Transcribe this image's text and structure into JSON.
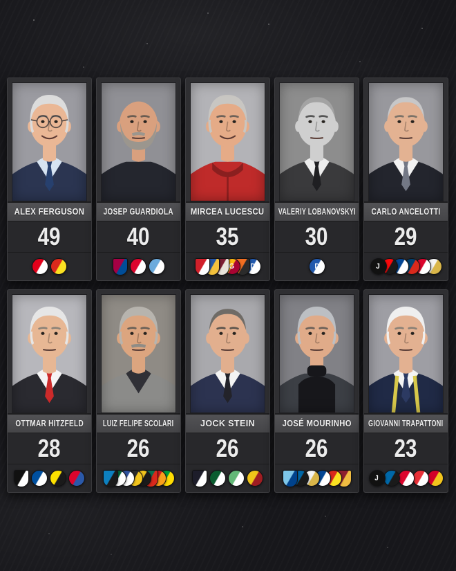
{
  "theme": {
    "chalkboard_bg": "#17171b",
    "card_frame": "#2f2f32",
    "card_border": "#3e3e41",
    "name_bar_bg": "#4a4a4d",
    "panel_bg": "#28282b",
    "text_color": "#ededed"
  },
  "cards": [
    {
      "name": "ALEX FERGUSON",
      "count": 49,
      "portrait": {
        "bg": "#9b9ba1",
        "skin": "#eab795",
        "hair": "full",
        "hairColor": "#dcdcdc",
        "suit": "#2b3551",
        "shirt": "#d7e4f2",
        "tie": "#27406e",
        "glasses": true,
        "smile": true,
        "brow": "#8a8078"
      },
      "badges": [
        {
          "club": "Aberdeen",
          "shape": "circle",
          "c1": "#e2001a",
          "c2": "#ffffff"
        },
        {
          "club": "Manchester United",
          "shape": "circle",
          "c1": "#da291c",
          "c2": "#fbe122"
        }
      ]
    },
    {
      "name": "JOSEP GUARDIOLA",
      "count": 40,
      "portrait": {
        "bg": "#909095",
        "skin": "#d9a07e",
        "hair": "none",
        "hairColor": "#9a9089",
        "beard": "#9b968e",
        "suit": "#24262e",
        "brow": "#6b5d52"
      },
      "badges": [
        {
          "club": "Barcelona",
          "shape": "shield",
          "c1": "#a50044",
          "c2": "#004d98"
        },
        {
          "club": "Bayern Munich",
          "shape": "circle",
          "c1": "#dc052d",
          "c2": "#ffffff"
        },
        {
          "club": "Manchester City",
          "shape": "circle",
          "c1": "#6cabdd",
          "c2": "#ffffff"
        }
      ]
    },
    {
      "name": "MIRCEA LUCESCU",
      "count": 35,
      "portrait": {
        "bg": "#b3b3b7",
        "skin": "#e5ab87",
        "hair": "full",
        "hairColor": "#c8c6c2",
        "suit": "#bf2b2a",
        "zip": true,
        "zipCollar": "#8a1f1f",
        "smile": true,
        "brow": "#6e6259"
      },
      "badges": [
        {
          "club": "Dinamo Bucuresti",
          "shape": "shield",
          "c1": "#d1202a",
          "c2": "#ffffff"
        },
        {
          "club": "Brescia",
          "shape": "shield",
          "c1": "#2456a4",
          "c2": "#f3c13d"
        },
        {
          "club": "Rapid Bucuresti",
          "shape": "shield",
          "c1": "#7c1f33",
          "c2": "#e8e4da"
        },
        {
          "club": "Galatasaray",
          "shape": "circle",
          "c1": "#fdb912",
          "c2": "#a90432",
          "glyph": "G",
          "glyphColor": "#ffffff"
        },
        {
          "club": "Shakhtar Donetsk",
          "shape": "shield",
          "c1": "#f36f21",
          "c2": "#2b2b2b"
        },
        {
          "club": "Dynamo Kyiv",
          "shape": "circle",
          "c1": "#2259ad",
          "c2": "#ffffff",
          "glyph": "D",
          "glyphColor": "#ffffff"
        }
      ]
    },
    {
      "name": "VALERIY LOBANOVSKYI",
      "count": 30,
      "portrait": {
        "bg": "#8d8d8d",
        "skin": "#cfcfcf",
        "hair": "receding",
        "hairColor": "#a3a3a3",
        "suit": "#3a3a3c",
        "shirt": "#ededed",
        "tie": "#1f1f22",
        "brow": "#555555"
      },
      "badges": [
        {
          "club": "Dynamo Kyiv",
          "shape": "circle",
          "c1": "#2259ad",
          "c2": "#ffffff",
          "glyph": "D",
          "glyphColor": "#ffffff"
        }
      ]
    },
    {
      "name": "CARLO ANCELOTTI",
      "count": 29,
      "portrait": {
        "bg": "#98989d",
        "skin": "#e3b292",
        "hair": "receding",
        "hairColor": "#c7c7c8",
        "suit": "#23252d",
        "shirt": "#f2f2f2",
        "tie": "#737885",
        "brow": "#7b7268"
      },
      "badges": [
        {
          "club": "Juventus",
          "shape": "circle",
          "c1": "#111111",
          "c2": "#111111",
          "glyph": "J",
          "glyphColor": "#ffffff"
        },
        {
          "club": "AC Milan",
          "shape": "circle",
          "c1": "#fb090b",
          "c2": "#1a1a1a"
        },
        {
          "club": "Chelsea",
          "shape": "circle",
          "c1": "#034694",
          "c2": "#ffffff"
        },
        {
          "club": "Paris Saint-Germain",
          "shape": "circle",
          "c1": "#004170",
          "c2": "#da291c"
        },
        {
          "club": "Bayern Munich",
          "shape": "circle",
          "c1": "#dc052d",
          "c2": "#ffffff"
        },
        {
          "club": "Real Madrid",
          "shape": "circle",
          "c1": "#f4f4f4",
          "c2": "#d9b64a"
        }
      ]
    },
    {
      "name": "OTTMAR HITZFELD",
      "count": 28,
      "portrait": {
        "bg": "#b7b7bc",
        "skin": "#e7b794",
        "hair": "full",
        "hairColor": "#e6e6e6",
        "suit": "#2a2a30",
        "shirt": "#f5f5f5",
        "tie": "#cc2a2a",
        "brow": "#8c8378"
      },
      "badges": [
        {
          "club": "Aarau",
          "shape": "shield",
          "c1": "#111111",
          "c2": "#ffffff"
        },
        {
          "club": "Grasshopper",
          "shape": "circle",
          "c1": "#0050a0",
          "c2": "#ffffff"
        },
        {
          "club": "Borussia Dortmund",
          "shape": "circle",
          "c1": "#fde100",
          "c2": "#1a1a1a"
        },
        {
          "club": "Bayern Munich",
          "shape": "circle",
          "c1": "#dc052d",
          "c2": "#2b59a9"
        }
      ]
    },
    {
      "name": "LUIZ FELIPE SCOLARI",
      "count": 26,
      "portrait": {
        "bg": "#8f8b85",
        "skin": "#dca57f",
        "hair": "full",
        "hairColor": "#b7b4ae",
        "mustache": "#8f8c86",
        "suit": "#8b8b89",
        "shirt": "#303036",
        "brow": "#6b6158"
      },
      "badges": [
        {
          "club": "Gremio",
          "shape": "shield",
          "c1": "#0d80bf",
          "c2": "#1a1a1a"
        },
        {
          "club": "Palmeiras",
          "shape": "circle",
          "c1": "#006437",
          "c2": "#ffffff"
        },
        {
          "club": "Cruzeiro",
          "shape": "circle",
          "c1": "#2f529e",
          "c2": "#ffffff"
        },
        {
          "club": "Criciuma",
          "shape": "circle",
          "c1": "#2b2b2b",
          "c2": "#f2c51d"
        },
        {
          "club": "Al-Qadisiya",
          "shape": "circle",
          "c1": "#f2c51d",
          "c2": "#1a1a1a"
        },
        {
          "club": "Portugal",
          "shape": "shield",
          "c1": "#0b6e4f",
          "c2": "#da291c"
        },
        {
          "club": "Guangzhou Evergrande",
          "shape": "circle",
          "c1": "#d71920",
          "c2": "#f9a01b"
        },
        {
          "club": "Brazil",
          "shape": "circle",
          "c1": "#009c3b",
          "c2": "#ffdc02"
        }
      ]
    },
    {
      "name": "JOCK STEIN",
      "count": 26,
      "portrait": {
        "bg": "#a9a9ad",
        "skin": "#e2af8e",
        "hair": "receding",
        "hairColor": "#6f6b66",
        "suit": "#2c3350",
        "shirt": "#f4f4f4",
        "tie": "#23232a",
        "brow": "#5d554d"
      },
      "badges": [
        {
          "club": "Dunfermline Athletic",
          "shape": "shield",
          "c1": "#1d1d2a",
          "c2": "#ffffff"
        },
        {
          "club": "Hibernian",
          "shape": "circle",
          "c1": "#0a5c2f",
          "c2": "#ffffff"
        },
        {
          "club": "Celtic",
          "shape": "circle",
          "c1": "#63b877",
          "c2": "#ffffff"
        },
        {
          "club": "Scotland",
          "shape": "circle",
          "c1": "#f0c419",
          "c2": "#9f1d22"
        }
      ]
    },
    {
      "name": "JOSÉ MOURINHO",
      "count": 26,
      "portrait": {
        "bg": "#818186",
        "skin": "#e0ab89",
        "hair": "full",
        "hairColor": "#bcbfc3",
        "suit": "#3c3f45",
        "turtleneck": "#17171b",
        "brow": "#6d6159"
      },
      "badges": [
        {
          "club": "Porto",
          "shape": "shield",
          "c1": "#7ec6e8",
          "c2": "#00428c"
        },
        {
          "club": "Inter",
          "shape": "circle",
          "c1": "#0068a8",
          "c2": "#1a1a1a"
        },
        {
          "club": "Real Madrid",
          "shape": "circle",
          "c1": "#f4f4f4",
          "c2": "#d9b64a"
        },
        {
          "club": "Chelsea",
          "shape": "circle",
          "c1": "#034694",
          "c2": "#ffffff"
        },
        {
          "club": "Manchester United",
          "shape": "circle",
          "c1": "#da291c",
          "c2": "#fbe122"
        },
        {
          "club": "Roma",
          "shape": "shield",
          "c1": "#8e1f2f",
          "c2": "#f0bc42"
        }
      ]
    },
    {
      "name": "GIOVANNI TRAPATTONI",
      "count": 23,
      "portrait": {
        "bg": "#9e9ea4",
        "skin": "#e3b191",
        "hair": "full",
        "hairColor": "#efefef",
        "suit": "#202a46",
        "shirt": "#f4f4f4",
        "tie": "#2c3a62",
        "lanyard": true,
        "brow": "#8b8176"
      },
      "badges": [
        {
          "club": "Juventus",
          "shape": "circle",
          "c1": "#111111",
          "c2": "#111111",
          "glyph": "J",
          "glyphColor": "#ffffff"
        },
        {
          "club": "Inter",
          "shape": "circle",
          "c1": "#0068a8",
          "c2": "#1a1a1a"
        },
        {
          "club": "Bayern Munich",
          "shape": "circle",
          "c1": "#dc052d",
          "c2": "#ffffff"
        },
        {
          "club": "Benfica",
          "shape": "circle",
          "c1": "#e83038",
          "c2": "#ffffff"
        },
        {
          "club": "Red Bull Salzburg",
          "shape": "circle",
          "c1": "#d30029",
          "c2": "#f2c51d"
        }
      ]
    }
  ]
}
